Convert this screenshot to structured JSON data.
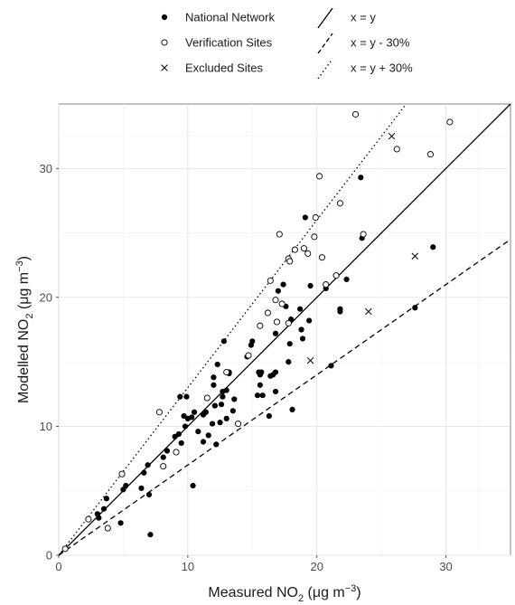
{
  "chart_data": {
    "type": "scatter",
    "xlabel": {
      "pre": "Measured NO",
      "sub": "2",
      "mid": " (",
      "mu": "μ",
      "post": "g m",
      "sup": "−3",
      "end": ")"
    },
    "ylabel": {
      "pre": "Modelled NO",
      "sub": "2",
      "mid": " (",
      "mu": "μ",
      "post": "g m",
      "sup": "−3",
      "end": ")"
    },
    "xlim": [
      0,
      35
    ],
    "ylim": [
      0,
      35
    ],
    "xticks": [
      0,
      10,
      20,
      30
    ],
    "yticks": [
      0,
      10,
      20,
      30
    ],
    "grid": true,
    "legend_position": "top",
    "legend": {
      "points": [
        {
          "label": "National Network",
          "marker": "filled-circle"
        },
        {
          "label": "Verification Sites",
          "marker": "open-circle"
        },
        {
          "label": "Excluded Sites",
          "marker": "cross"
        }
      ],
      "lines": [
        {
          "label": "x = y",
          "style": "solid"
        },
        {
          "label": "x = y - 30%",
          "style": "dashed"
        },
        {
          "label": "x = y + 30%",
          "style": "dotted"
        }
      ]
    },
    "reference_lines": [
      {
        "name": "x = y",
        "slope": 1.0,
        "style": "solid"
      },
      {
        "name": "x = y - 30%",
        "slope": 0.7,
        "style": "dashed"
      },
      {
        "name": "x = y + 30%",
        "slope": 1.3,
        "style": "dotted"
      }
    ],
    "series": [
      {
        "name": "National Network",
        "marker": "filled-circle",
        "points": [
          [
            3.0,
            3.2
          ],
          [
            3.1,
            2.9
          ],
          [
            3.5,
            3.6
          ],
          [
            3.7,
            4.4
          ],
          [
            4.8,
            2.5
          ],
          [
            5.0,
            5.1
          ],
          [
            5.2,
            5.4
          ],
          [
            6.4,
            5.2
          ],
          [
            6.6,
            6.4
          ],
          [
            7.0,
            4.7
          ],
          [
            7.1,
            1.6
          ],
          [
            6.9,
            7.0
          ],
          [
            8.1,
            7.6
          ],
          [
            8.4,
            8.1
          ],
          [
            9.0,
            9.2
          ],
          [
            9.3,
            9.4
          ],
          [
            9.5,
            8.7
          ],
          [
            9.4,
            12.3
          ],
          [
            9.8,
            10.0
          ],
          [
            9.7,
            10.8
          ],
          [
            9.9,
            12.3
          ],
          [
            10.0,
            10.6
          ],
          [
            10.3,
            10.7
          ],
          [
            10.4,
            5.4
          ],
          [
            10.5,
            11.1
          ],
          [
            10.8,
            9.6
          ],
          [
            11.2,
            8.8
          ],
          [
            11.2,
            10.9
          ],
          [
            11.4,
            11.1
          ],
          [
            11.6,
            9.3
          ],
          [
            11.9,
            10.2
          ],
          [
            12.0,
            13.2
          ],
          [
            12.0,
            13.8
          ],
          [
            12.1,
            11.6
          ],
          [
            12.2,
            8.6
          ],
          [
            12.3,
            14.8
          ],
          [
            12.5,
            10.3
          ],
          [
            12.6,
            11.7
          ],
          [
            12.7,
            12.3
          ],
          [
            12.7,
            12.7
          ],
          [
            12.8,
            16.6
          ],
          [
            13.0,
            10.6
          ],
          [
            13.0,
            12.8
          ],
          [
            13.2,
            14.1
          ],
          [
            13.2,
            14.2
          ],
          [
            13.5,
            11.2
          ],
          [
            13.6,
            12.1
          ],
          [
            14.6,
            15.4
          ],
          [
            14.9,
            16.3
          ],
          [
            15.0,
            16.6
          ],
          [
            15.4,
            12.4
          ],
          [
            15.5,
            14.2
          ],
          [
            15.6,
            13.2
          ],
          [
            15.6,
            14.0
          ],
          [
            15.7,
            14.2
          ],
          [
            15.8,
            12.4
          ],
          [
            16.3,
            10.8
          ],
          [
            16.4,
            13.9
          ],
          [
            16.6,
            14.0
          ],
          [
            16.8,
            12.7
          ],
          [
            16.8,
            14.2
          ],
          [
            16.8,
            17.2
          ],
          [
            17.0,
            20.5
          ],
          [
            17.4,
            21.0
          ],
          [
            17.6,
            19.3
          ],
          [
            17.8,
            15.0
          ],
          [
            17.9,
            16.4
          ],
          [
            18.0,
            18.3
          ],
          [
            18.1,
            11.3
          ],
          [
            18.7,
            19.1
          ],
          [
            18.8,
            17.5
          ],
          [
            18.9,
            16.8
          ],
          [
            19.1,
            26.2
          ],
          [
            19.4,
            18.2
          ],
          [
            19.5,
            20.9
          ],
          [
            20.7,
            20.7
          ],
          [
            21.1,
            14.7
          ],
          [
            21.8,
            18.9
          ],
          [
            21.8,
            19.1
          ],
          [
            22.3,
            21.4
          ],
          [
            23.4,
            29.3
          ],
          [
            23.5,
            24.6
          ],
          [
            27.6,
            19.2
          ],
          [
            29.0,
            23.9
          ]
        ]
      },
      {
        "name": "Verification Sites",
        "marker": "open-circle",
        "points": [
          [
            0.5,
            0.5
          ],
          [
            2.3,
            2.8
          ],
          [
            3.8,
            2.1
          ],
          [
            4.9,
            6.3
          ],
          [
            7.8,
            11.1
          ],
          [
            8.1,
            6.9
          ],
          [
            9.1,
            8.0
          ],
          [
            11.5,
            12.2
          ],
          [
            13.0,
            14.2
          ],
          [
            13.9,
            10.2
          ],
          [
            14.7,
            15.5
          ],
          [
            15.6,
            17.8
          ],
          [
            16.2,
            18.8
          ],
          [
            16.4,
            21.3
          ],
          [
            16.8,
            19.8
          ],
          [
            16.9,
            18.1
          ],
          [
            17.1,
            24.9
          ],
          [
            17.3,
            19.5
          ],
          [
            17.8,
            18.0
          ],
          [
            17.8,
            23.0
          ],
          [
            17.9,
            22.8
          ],
          [
            18.3,
            23.7
          ],
          [
            19.0,
            23.8
          ],
          [
            19.3,
            23.4
          ],
          [
            19.8,
            24.7
          ],
          [
            19.9,
            26.2
          ],
          [
            20.2,
            29.4
          ],
          [
            20.4,
            23.1
          ],
          [
            20.7,
            21.0
          ],
          [
            21.5,
            21.7
          ],
          [
            21.8,
            27.3
          ],
          [
            23.0,
            34.2
          ],
          [
            23.6,
            24.9
          ],
          [
            26.2,
            31.5
          ],
          [
            28.8,
            31.1
          ],
          [
            30.3,
            33.6
          ]
        ]
      },
      {
        "name": "Excluded Sites",
        "marker": "cross",
        "points": [
          [
            19.5,
            15.1
          ],
          [
            24.0,
            18.9
          ],
          [
            25.8,
            32.5
          ],
          [
            27.6,
            23.2
          ]
        ]
      }
    ]
  }
}
